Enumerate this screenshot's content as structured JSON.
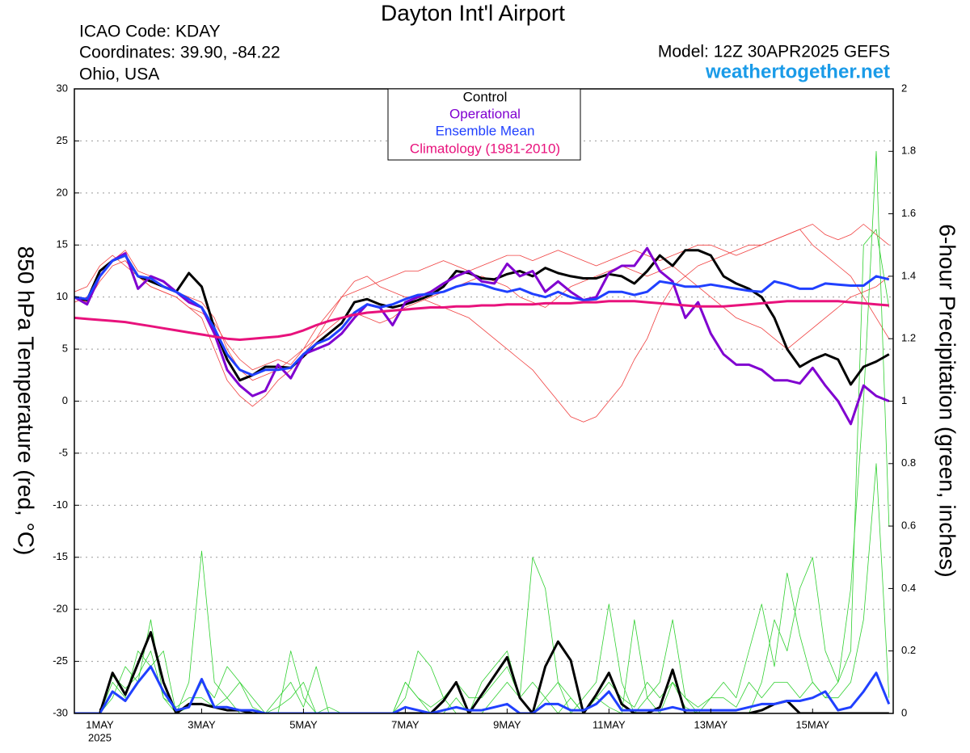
{
  "chart_data": {
    "type": "line",
    "title": "Dayton Int'l Airport",
    "info": [
      "ICAO Code: KDAY",
      "Coordinates: 39.90, -84.22",
      "Ohio, USA"
    ],
    "model": "Model: 12Z 30APR2025 GEFS",
    "site": "weathertogether.net",
    "ylabel": "850 hPa Temperature (red, °C)",
    "y2label": "6-hour Precipitation (green, inches)",
    "x": [
      0,
      6,
      12,
      18,
      24,
      30,
      36,
      42,
      48,
      54,
      60,
      66,
      72,
      78,
      84,
      90,
      96,
      102,
      108,
      114,
      120,
      126,
      132,
      138,
      144,
      150,
      156,
      162,
      168,
      174,
      180,
      186,
      192,
      198,
      204,
      210,
      216,
      222,
      228,
      234,
      240,
      246,
      252,
      258,
      264,
      270,
      276,
      282,
      288,
      294,
      300,
      306,
      312,
      318,
      324,
      330,
      336,
      342,
      348,
      354,
      360,
      366,
      372,
      378,
      384
    ],
    "xlim": [
      0,
      386
    ],
    "xticks": [
      {
        "value": 12,
        "label": "1MAY"
      },
      {
        "value": 60,
        "label": "3MAY"
      },
      {
        "value": 108,
        "label": "5MAY"
      },
      {
        "value": 156,
        "label": "7MAY"
      },
      {
        "value": 204,
        "label": "9MAY"
      },
      {
        "value": 252,
        "label": "11MAY"
      },
      {
        "value": 300,
        "label": "13MAY"
      },
      {
        "value": 348,
        "label": "15MAY"
      }
    ],
    "xtick_sublabel": "2025",
    "ylim": [
      -30,
      30
    ],
    "yticks": [
      -30,
      -25,
      -20,
      -15,
      -10,
      -5,
      0,
      5,
      10,
      15,
      20,
      25,
      30
    ],
    "y2lim": [
      0,
      2
    ],
    "y2ticks": [
      0,
      0.2,
      0.4,
      0.6,
      0.8,
      1,
      1.2,
      1.4,
      1.6,
      1.8,
      2
    ],
    "grid": true,
    "legend": "top",
    "members": [
      {
        "color": "#f04040",
        "axis": "y",
        "values": [
          10.5,
          11,
          13,
          14,
          13,
          12,
          11,
          10.5,
          10,
          9,
          8,
          5,
          2,
          0.5,
          -0.5,
          0.5,
          2,
          3,
          4.5,
          6,
          8,
          10,
          11.5,
          12,
          11,
          10.5,
          10,
          10,
          9.5,
          9,
          8.5,
          8,
          7,
          6,
          5,
          4,
          3,
          1.5,
          0,
          -1.5,
          -2,
          -1.5,
          0,
          1.5,
          4,
          6,
          9,
          11,
          12,
          13,
          13.5,
          14,
          14.5,
          15,
          15,
          15.5,
          16,
          16.5,
          15,
          14,
          13,
          12,
          10,
          8,
          6
        ]
      },
      {
        "color": "#f04040",
        "axis": "y",
        "values": [
          9.5,
          10,
          12,
          13.5,
          14.5,
          12.5,
          12,
          11.5,
          10.5,
          10,
          9.5,
          8,
          5,
          3,
          2,
          2.5,
          3,
          4,
          5,
          7,
          8.5,
          10,
          10.5,
          11,
          11.5,
          12,
          12.5,
          12.5,
          13,
          13.5,
          13,
          12.5,
          13,
          13.5,
          14,
          14,
          13.5,
          14,
          14.5,
          14,
          13.5,
          13,
          13.5,
          14,
          14.5,
          14,
          13.5,
          14,
          14.5,
          15,
          15,
          14.5,
          14,
          14.5,
          15,
          15.5,
          16,
          16.5,
          17,
          16,
          15.5,
          16,
          17,
          16,
          15
        ]
      },
      {
        "color": "#f04040",
        "axis": "y",
        "values": [
          10,
          9.5,
          11.5,
          13,
          13.5,
          12,
          11,
          10.5,
          10,
          9,
          8.5,
          7.5,
          5.5,
          4,
          3,
          3.5,
          4,
          3.5,
          5,
          6,
          7,
          8,
          8.5,
          8,
          7.5,
          8,
          9,
          9.5,
          10,
          10.5,
          11,
          11.5,
          12,
          11.5,
          11,
          10,
          9.5,
          9,
          10,
          11,
          11.5,
          12,
          12.5,
          13,
          12.5,
          12,
          12.5,
          13,
          12,
          11,
          10,
          9,
          8,
          7.5,
          7,
          6,
          5,
          6,
          7,
          8,
          9,
          10,
          10.5,
          11,
          12
        ]
      },
      {
        "color": "#30d030",
        "axis": "y2",
        "values": [
          0,
          0,
          0,
          0.05,
          0.15,
          0.1,
          0.3,
          0.05,
          0,
          0.1,
          0.52,
          0.1,
          0.05,
          0,
          0,
          0,
          0.02,
          0.05,
          0.1,
          0,
          0,
          0,
          0,
          0,
          0,
          0,
          0.05,
          0.2,
          0.15,
          0.05,
          0,
          0,
          0,
          0.05,
          0.1,
          0.05,
          0.5,
          0.4,
          0.1,
          0,
          0.05,
          0.1,
          0.35,
          0.1,
          0,
          0.05,
          0.1,
          0.3,
          0.05,
          0,
          0,
          0,
          0,
          0,
          0.1,
          0.3,
          0.2,
          0.4,
          0.5,
          0.2,
          0.1,
          0.4,
          1.0,
          1.8,
          0.6
        ]
      },
      {
        "color": "#30d030",
        "axis": "y2",
        "values": [
          0,
          0,
          0,
          0.1,
          0.05,
          0.2,
          0.15,
          0.2,
          0,
          0.02,
          0.1,
          0.05,
          0.15,
          0.1,
          0.05,
          0,
          0,
          0.2,
          0.05,
          0,
          0.02,
          0,
          0,
          0,
          0,
          0,
          0.1,
          0.05,
          0,
          0,
          0.05,
          0,
          0.1,
          0.15,
          0.2,
          0.05,
          0.1,
          0.05,
          0,
          0.05,
          0,
          0.05,
          0.02,
          0,
          0.3,
          0.05,
          0,
          0.1,
          0.02,
          0,
          0.05,
          0.1,
          0.05,
          0.2,
          0.35,
          0.15,
          0.45,
          0.25,
          0.1,
          0.05,
          0.05,
          0.1,
          0.3,
          0.8,
          0.05
        ]
      },
      {
        "color": "#30d030",
        "axis": "y2",
        "values": [
          0,
          0,
          0,
          0.12,
          0.08,
          0.12,
          0.2,
          0.05,
          0.02,
          0.05,
          0.05,
          0.02,
          0.05,
          0.1,
          0.02,
          0,
          0.05,
          0.1,
          0.02,
          0.15,
          0,
          0,
          0,
          0,
          0,
          0,
          0.1,
          0.05,
          0.02,
          0.05,
          0.1,
          0.05,
          0.05,
          0.1,
          0.15,
          0.05,
          0,
          0.05,
          0.1,
          0.05,
          0,
          0.05,
          0.1,
          0.05,
          0.02,
          0.1,
          0.05,
          0.1,
          0.05,
          0.02,
          0.05,
          0.05,
          0.02,
          0.1,
          0.05,
          0.1,
          0.1,
          0.05,
          0.1,
          0.05,
          0.1,
          0.2,
          1.5,
          1.55,
          1.3
        ]
      }
    ],
    "precip_series": [
      {
        "color": "#000000",
        "axis": "y2",
        "values": [
          0,
          0,
          0,
          0.13,
          0.06,
          0.16,
          0.26,
          0.1,
          0,
          0.03,
          0.03,
          0.02,
          0.01,
          0.01,
          0,
          0,
          0,
          0,
          0,
          0,
          0,
          0,
          0,
          0,
          0,
          0,
          0,
          0,
          0,
          0.04,
          0.1,
          0,
          0.06,
          0.12,
          0.18,
          0.05,
          0,
          0.15,
          0.23,
          0.17,
          0,
          0.06,
          0.13,
          0.03,
          0,
          0,
          0.02,
          0.14,
          0,
          0,
          0,
          0,
          0,
          0,
          0.01,
          0.03,
          0.04,
          0,
          0,
          0,
          0,
          0,
          0,
          0,
          0
        ]
      },
      {
        "color": "#2040ff",
        "axis": "y2",
        "values": [
          0,
          0,
          0,
          0.07,
          0.04,
          0.1,
          0.15,
          0.07,
          0.01,
          0.02,
          0.11,
          0.02,
          0.02,
          0.01,
          0.01,
          0,
          0,
          0,
          0,
          0,
          0,
          0,
          0,
          0,
          0,
          0,
          0.02,
          0.01,
          0,
          0.01,
          0.02,
          0.01,
          0.01,
          0.02,
          0.03,
          0,
          0,
          0.03,
          0.03,
          0.01,
          0.01,
          0.03,
          0.07,
          0.01,
          0.01,
          0.01,
          0.01,
          0.02,
          0.01,
          0.01,
          0.01,
          0.01,
          0.01,
          0.02,
          0.03,
          0.03,
          0.04,
          0.04,
          0.05,
          0.07,
          0.01,
          0.02,
          0.07,
          0.13,
          0.03
        ]
      }
    ],
    "series": [
      {
        "name": "Control",
        "color": "#000000",
        "axis": "y",
        "values": [
          10,
          9.7,
          12.5,
          13.5,
          14,
          12,
          11.5,
          11,
          10.5,
          12.3,
          11,
          7,
          4,
          2,
          2.5,
          3.3,
          3.3,
          3.2,
          4.3,
          5.5,
          6.5,
          7.5,
          9.5,
          9.8,
          9.3,
          9,
          9.3,
          9.7,
          10.2,
          11,
          12.5,
          12.3,
          11.8,
          11.7,
          12.2,
          12.5,
          12,
          12.8,
          12.3,
          12,
          11.8,
          11.8,
          12.2,
          12,
          11.3,
          12.5,
          14,
          13,
          14.5,
          14.5,
          14,
          12,
          11.3,
          10.8,
          10,
          8,
          5,
          3.3,
          4,
          4.5,
          4,
          1.6,
          3.3,
          3.8,
          4.5
        ]
      },
      {
        "name": "Operational",
        "color": "#8000d0",
        "axis": "y",
        "values": [
          10,
          9.3,
          12,
          13.5,
          14.2,
          10.8,
          12,
          11.5,
          10.5,
          9.5,
          9,
          6.5,
          3,
          1.5,
          0.5,
          1,
          3.5,
          2.2,
          4.5,
          5,
          5.5,
          6.5,
          8,
          9.3,
          9,
          7.3,
          9.5,
          10,
          10.5,
          11.3,
          12,
          12.5,
          11.5,
          11.3,
          13.2,
          12,
          12.5,
          10.5,
          11.5,
          10.5,
          9.7,
          10,
          12.3,
          13,
          13,
          14.7,
          12.5,
          11.5,
          8,
          9.5,
          6.5,
          4.5,
          3.5,
          3.5,
          3,
          2,
          2,
          1.7,
          3.2,
          1.5,
          0,
          -2.2,
          1.5,
          0.5,
          0
        ]
      },
      {
        "name": "Ensemble Mean",
        "color": "#2040ff",
        "axis": "y",
        "values": [
          10,
          9.8,
          12,
          13.5,
          14,
          12,
          11.8,
          11,
          10.5,
          9.8,
          9,
          7,
          4.5,
          3,
          2.5,
          3,
          3,
          3.2,
          4.5,
          5.5,
          6,
          7,
          8.5,
          9.3,
          9,
          9.3,
          9.8,
          10.2,
          10.3,
          10.5,
          11,
          11.3,
          11.2,
          10.8,
          10.5,
          10.8,
          10.3,
          10,
          10.5,
          10,
          9.7,
          9.8,
          10.5,
          10.5,
          10.2,
          10.5,
          11.5,
          11.3,
          11,
          11,
          11.2,
          11,
          10.8,
          10.6,
          10.5,
          11.5,
          11.2,
          10.8,
          10.8,
          11.3,
          11.2,
          11.1,
          11.1,
          12,
          11.7
        ]
      },
      {
        "name": "Climatology (1981-2010)",
        "color": "#e8127c",
        "axis": "y",
        "values": [
          8,
          7.9,
          7.8,
          7.7,
          7.6,
          7.4,
          7.2,
          7,
          6.8,
          6.6,
          6.4,
          6.2,
          6,
          5.9,
          6,
          6.1,
          6.2,
          6.4,
          6.8,
          7.3,
          7.7,
          8,
          8.3,
          8.5,
          8.6,
          8.7,
          8.8,
          8.9,
          9,
          9,
          9.1,
          9.1,
          9.2,
          9.2,
          9.3,
          9.3,
          9.3,
          9.4,
          9.4,
          9.4,
          9.5,
          9.5,
          9.6,
          9.6,
          9.6,
          9.5,
          9.4,
          9.3,
          9.2,
          9.1,
          9.1,
          9.1,
          9.2,
          9.3,
          9.4,
          9.5,
          9.6,
          9.6,
          9.6,
          9.6,
          9.6,
          9.5,
          9.4,
          9.3,
          9.2
        ]
      }
    ]
  }
}
